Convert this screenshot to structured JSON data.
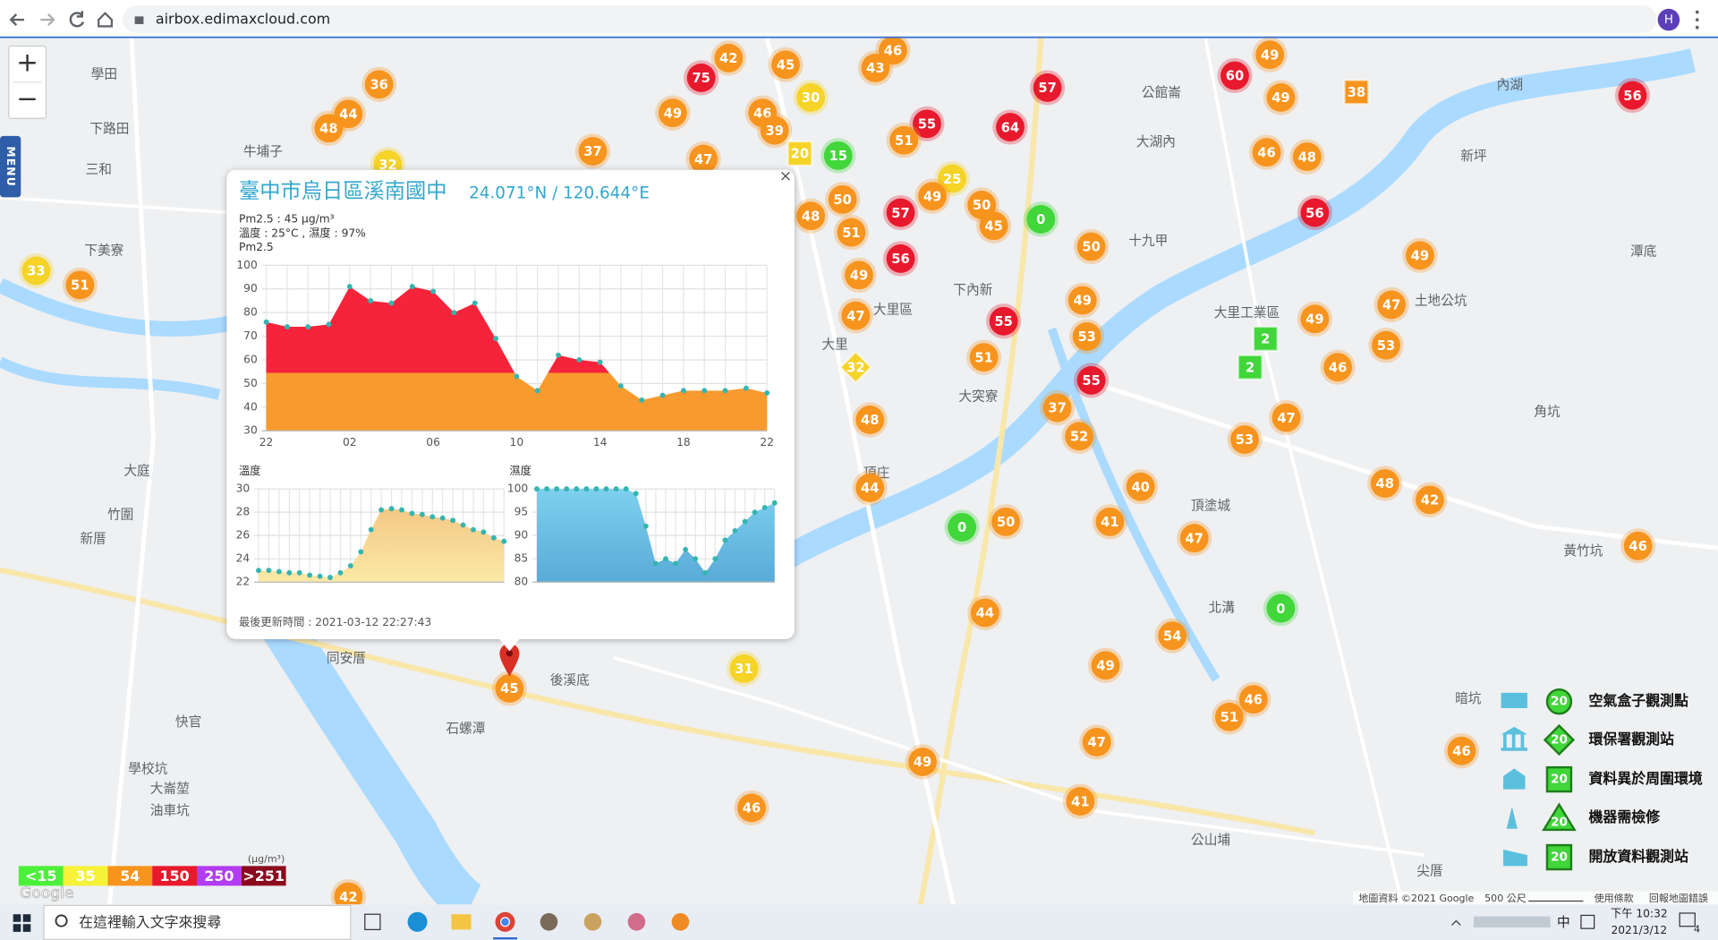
{
  "browser": {
    "url": "airbox.edimaxcloud.com",
    "profile": "H"
  },
  "map_controls": {
    "zoom_in": "+",
    "zoom_out": "−",
    "menu": "MENU"
  },
  "popup": {
    "title": "臺中市烏日區溪南國中",
    "coords": "24.071°N / 120.644°E",
    "pm25": "Pm2.5 : 45 μg/m³",
    "weather": "溫度 : 25°C , 濕度 : 97%",
    "updated": "最後更新時間 : 2021-03-12 22:27:43",
    "close": "×"
  },
  "chart_data": [
    {
      "type": "area",
      "title": "Pm2.5",
      "categories": [
        "22",
        null,
        null,
        null,
        "02",
        null,
        null,
        null,
        "06",
        null,
        null,
        null,
        "10",
        null,
        null,
        null,
        "14",
        null,
        null,
        null,
        "18",
        null,
        null,
        null,
        "22"
      ],
      "values": [
        76,
        74,
        74,
        75,
        91,
        85,
        84,
        91,
        89,
        80,
        84,
        69,
        53,
        47,
        62,
        60,
        59,
        49,
        43,
        45,
        47,
        47,
        47,
        48,
        46
      ],
      "ylim": [
        30,
        100
      ],
      "yticks": [
        30,
        40,
        50,
        60,
        70,
        80,
        90,
        100
      ],
      "grid": true,
      "colors": [
        "#f5243a",
        "#f99a2e"
      ],
      "color_split": 54.5,
      "point_color": "#35b5b0"
    },
    {
      "type": "area",
      "title": "溫度",
      "values": [
        23.0,
        23.0,
        22.9,
        22.8,
        22.8,
        22.6,
        22.5,
        22.4,
        22.8,
        23.4,
        24.6,
        26.5,
        28.2,
        28.3,
        28.2,
        27.9,
        27.8,
        27.6,
        27.5,
        27.3,
        26.9,
        26.5,
        26.3,
        25.8,
        25.5
      ],
      "ylim": [
        22,
        30
      ],
      "yticks": [
        22,
        24,
        26,
        28,
        30
      ],
      "grid": true,
      "colors": [
        "#f2bf7c",
        "#fbe9a6"
      ],
      "point_color": "#35b5b0"
    },
    {
      "type": "area",
      "title": "濕度",
      "values": [
        100,
        100,
        100,
        100,
        100,
        100,
        100,
        100,
        100,
        100,
        99,
        92,
        84,
        85,
        84,
        87,
        85,
        82,
        85,
        89,
        91,
        93,
        95,
        96,
        97
      ],
      "ylim": [
        80,
        100
      ],
      "yticks": [
        80,
        85,
        90,
        95,
        100
      ],
      "grid": true,
      "colors": [
        "#7ed0ee",
        "#5aaad8"
      ],
      "point_color": "#35b5b0"
    }
  ],
  "markers": [
    {
      "value": 48,
      "color": "#f7941d"
    },
    {
      "value": 44,
      "color": "#f7941d"
    },
    {
      "value": 36,
      "color": "#f7941d"
    },
    {
      "value": 32,
      "color": "#f5d327"
    },
    {
      "value": 33,
      "color": "#f5d327"
    },
    {
      "value": 51,
      "color": "#f7941d"
    },
    {
      "value": 37,
      "color": "#f7941d"
    },
    {
      "value": 49,
      "color": "#f7941d"
    },
    {
      "value": 47,
      "color": "#f7941d"
    },
    {
      "value": 42,
      "color": "#f7941d"
    },
    {
      "value": 75,
      "color": "#e8192c"
    },
    {
      "value": 45,
      "color": "#f7941d"
    },
    {
      "value": 30,
      "color": "#f5d327"
    },
    {
      "value": 46,
      "color": "#f7941d"
    },
    {
      "value": 39,
      "color": "#f7941d"
    },
    {
      "value": 20,
      "color": "#f5d327",
      "shape": "square"
    },
    {
      "value": 15,
      "color": "#41d63a"
    },
    {
      "value": 46,
      "color": "#f7941d"
    },
    {
      "value": 43,
      "color": "#f7941d"
    },
    {
      "value": 57,
      "color": "#e8192c"
    },
    {
      "value": 55,
      "color": "#e8192c"
    },
    {
      "value": 64,
      "color": "#e8192c"
    },
    {
      "value": 51,
      "color": "#f7941d"
    },
    {
      "value": 25,
      "color": "#f5d327"
    },
    {
      "value": 49,
      "color": "#f7941d"
    },
    {
      "value": 57,
      "color": "#e8192c"
    },
    {
      "value": 50,
      "color": "#f7941d"
    },
    {
      "value": 48,
      "color": "#f7941d"
    },
    {
      "value": 51,
      "color": "#f7941d"
    },
    {
      "value": 50,
      "color": "#f7941d"
    },
    {
      "value": 45,
      "color": "#f7941d"
    },
    {
      "value": 0,
      "color": "#41d63a"
    },
    {
      "value": 56,
      "color": "#e8192c"
    },
    {
      "value": 49,
      "color": "#f7941d"
    },
    {
      "value": 50,
      "color": "#f7941d"
    },
    {
      "value": 47,
      "color": "#f7941d"
    },
    {
      "value": 55,
      "color": "#e8192c"
    },
    {
      "value": 49,
      "color": "#f7941d"
    },
    {
      "value": 53,
      "color": "#f7941d"
    },
    {
      "value": 51,
      "color": "#f7941d"
    },
    {
      "value": 32,
      "color": "#f5d327",
      "shape": "diamond"
    },
    {
      "value": 55,
      "color": "#e8192c"
    },
    {
      "value": 48,
      "color": "#f7941d"
    },
    {
      "value": 37,
      "color": "#f7941d"
    },
    {
      "value": 52,
      "color": "#f7941d"
    },
    {
      "value": 44,
      "color": "#f7941d"
    },
    {
      "value": 40,
      "color": "#f7941d"
    },
    {
      "value": 41,
      "color": "#f7941d"
    },
    {
      "value": 0,
      "color": "#41d63a"
    },
    {
      "value": 50,
      "color": "#f7941d"
    },
    {
      "value": 47,
      "color": "#f7941d"
    },
    {
      "value": 44,
      "color": "#f7941d"
    },
    {
      "value": 54,
      "color": "#f7941d"
    },
    {
      "value": 0,
      "color": "#41d63a"
    },
    {
      "value": 49,
      "color": "#f7941d"
    },
    {
      "value": 31,
      "color": "#f5d327"
    },
    {
      "value": 45,
      "color": "#f7941d"
    },
    {
      "value": 49,
      "color": "#f7941d"
    },
    {
      "value": 46,
      "color": "#f7941d"
    },
    {
      "value": 47,
      "color": "#f7941d"
    },
    {
      "value": 41,
      "color": "#f7941d"
    },
    {
      "value": 51,
      "color": "#f7941d"
    },
    {
      "value": 46,
      "color": "#f7941d"
    },
    {
      "value": 46,
      "color": "#f7941d"
    },
    {
      "value": 46,
      "color": "#f7941d"
    },
    {
      "value": 42,
      "color": "#f7941d"
    },
    {
      "value": 48,
      "color": "#f7941d"
    },
    {
      "value": 53,
      "color": "#f7941d"
    },
    {
      "value": 47,
      "color": "#f7941d"
    },
    {
      "value": 46,
      "color": "#f7941d"
    },
    {
      "value": 53,
      "color": "#f7941d"
    },
    {
      "value": 47,
      "color": "#f7941d"
    },
    {
      "value": 49,
      "color": "#f7941d"
    },
    {
      "value": 2,
      "color": "#41d63a",
      "shape": "square"
    },
    {
      "value": 2,
      "color": "#41d63a",
      "shape": "square"
    },
    {
      "value": 49,
      "color": "#f7941d"
    },
    {
      "value": 56,
      "color": "#e8192c"
    },
    {
      "value": 46,
      "color": "#f7941d"
    },
    {
      "value": 48,
      "color": "#f7941d"
    },
    {
      "value": 60,
      "color": "#e8192c"
    },
    {
      "value": 49,
      "color": "#f7941d"
    },
    {
      "value": 49,
      "color": "#f7941d"
    },
    {
      "value": 38,
      "color": "#f7941d",
      "shape": "square"
    },
    {
      "value": 56,
      "color": "#e8192c"
    },
    {
      "value": 42,
      "color": "#f7941d"
    }
  ],
  "places": [
    "學田",
    "下路田",
    "三和",
    "牛埔子",
    "下美寮",
    "大里區",
    "下內新",
    "大里工業區",
    "大里",
    "大突寮",
    "竹圍",
    "大庭",
    "新厝",
    "同安厝",
    "石螺潭",
    "後溪底",
    "快官",
    "學校坑",
    "大崙堃",
    "油車坑",
    "北溝",
    "公館崙",
    "大湖內",
    "十九甲",
    "頂塗城",
    "內湖",
    "新坪",
    "潭底",
    "角坑",
    "黃竹坑",
    "暗坑",
    "公山埔",
    "尖厝",
    "土地公坑",
    "頂庄"
  ],
  "legend": [
    {
      "label": "空氣盒子觀測點",
      "badge": "20"
    },
    {
      "label": "環保署觀測站",
      "badge": "20"
    },
    {
      "label": "資料異於周圍環境",
      "badge": "20"
    },
    {
      "label": "機器需檢修",
      "badge": "20"
    },
    {
      "label": "開放資料觀測站",
      "badge": "20"
    }
  ],
  "scale": {
    "unit": "(μg/m³)",
    "levels": [
      {
        "label": "<15",
        "color": "#4cf03a"
      },
      {
        "label": "35",
        "color": "#f6f23a"
      },
      {
        "label": "54",
        "color": "#f7941d"
      },
      {
        "label": "150",
        "color": "#e8192c"
      },
      {
        "label": "250",
        "color": "#b23cf0"
      },
      {
        "label": ">251",
        "color": "#8b0a1e"
      }
    ]
  },
  "attribution": {
    "logo": "Google",
    "data": "地圖資料 ©2021 Google",
    "distance": "500 公尺",
    "terms": "使用條款",
    "report": "回報地圖錯誤"
  },
  "taskbar": {
    "search": "在這裡輸入文字來搜尋",
    "ime": "中",
    "time": "下午 10:32",
    "date": "2021/3/12",
    "notifications": "4"
  }
}
